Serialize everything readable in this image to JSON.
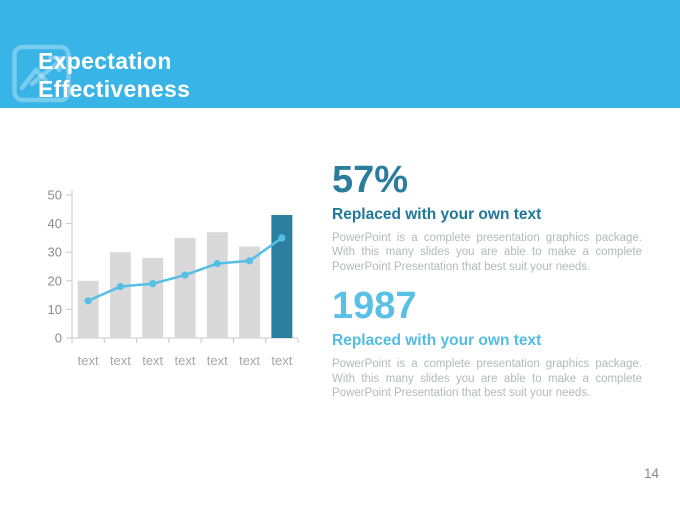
{
  "header": {
    "title_line1": "Expectation",
    "title_line2": "Effectiveness",
    "icon": "image-trend-icon"
  },
  "colors": {
    "header_bg": "#39B4E6",
    "title_text": "#FFFFFF",
    "bar_gray": "#D9D9D9",
    "bar_accent": "#2B80A2",
    "line_accent": "#55BFE5",
    "axis_line": "#C8C8C8",
    "axis_tick_label": "#8C8C8C",
    "category_label": "#A6A6A6",
    "body_text": "#B5B8BA",
    "page_number": "#8A8A8A"
  },
  "chart_data": {
    "type": "bar",
    "subtype": "combo-bar-line",
    "title": "",
    "xlabel": "",
    "ylabel": "",
    "categories": [
      "text",
      "text",
      "text",
      "text",
      "text",
      "text",
      "text"
    ],
    "series": [
      {
        "name": "bars",
        "type": "bar",
        "values": [
          20,
          30,
          28,
          35,
          37,
          32,
          43
        ],
        "color": "#D9D9D9",
        "highlight_index": 6,
        "highlight_color": "#2B80A2"
      },
      {
        "name": "line",
        "type": "line",
        "values": [
          13,
          18,
          19,
          22,
          26,
          27,
          35
        ],
        "color": "#55BFE5",
        "marker": "circle"
      }
    ],
    "ylim": [
      0,
      50
    ],
    "yticks": [
      0,
      10,
      20,
      30,
      40,
      50
    ],
    "grid": false,
    "legend": "none"
  },
  "stats": [
    {
      "value": "57%",
      "value_color": "#2B7C9D",
      "heading": "Replaced with your own text",
      "heading_color": "#1F7899",
      "body": "PowerPoint is a complete presentation graphics package. With this many slides you are able to make a complete PowerPoint Presentation that best suit your needs."
    },
    {
      "value": "1987",
      "value_color": "#5BC0E5",
      "heading": "Replaced with your own text",
      "heading_color": "#53BCE2",
      "body": "PowerPoint is a complete presentation graphics package. With this many slides you are able to make a complete PowerPoint Presentation that best suit your needs."
    }
  ],
  "footer": {
    "page_number": "14"
  }
}
